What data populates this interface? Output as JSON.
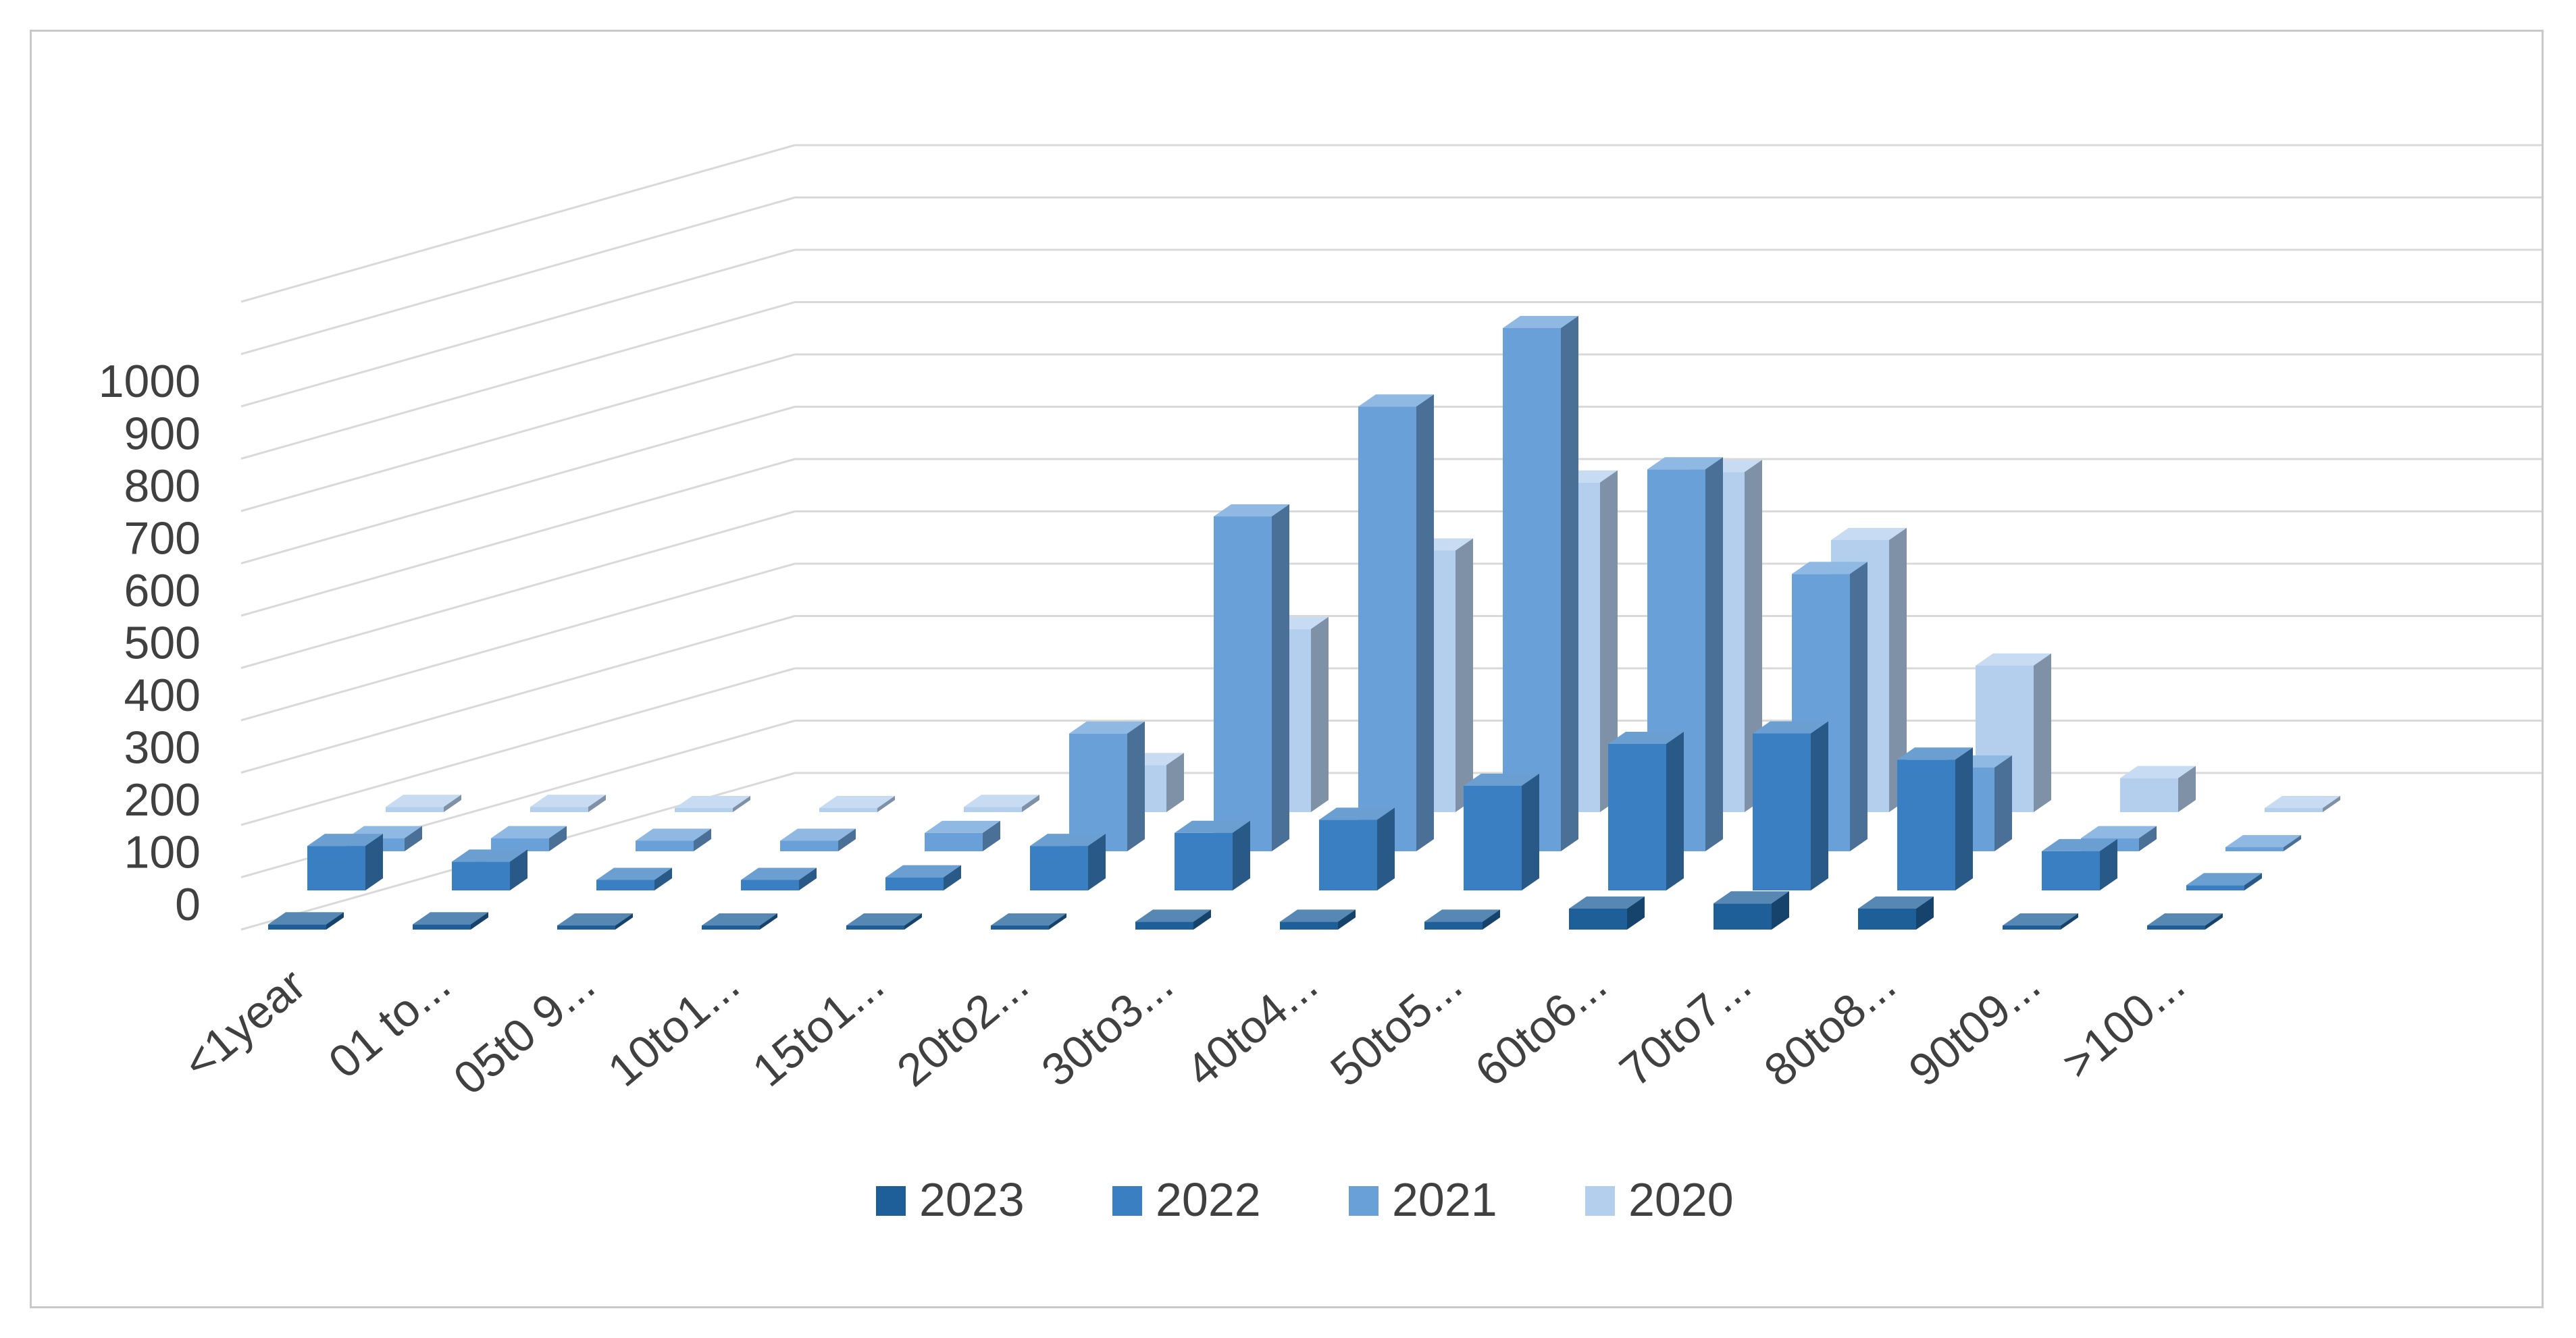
{
  "chart_data": {
    "type": "bar",
    "view": "3d-clustered-columns",
    "categories": [
      "<1year",
      "01 to...",
      "05t0 9...",
      "10to1...",
      "15to1...",
      "20to2...",
      "30to3...",
      "40to4...",
      "50to5...",
      "60to6...",
      "70to7...",
      "80to8...",
      "90t09...",
      ">100..."
    ],
    "series": [
      {
        "name": "2023",
        "color": "#1f5f99",
        "values": [
          10,
          10,
          5,
          2,
          5,
          5,
          15,
          15,
          15,
          40,
          50,
          40,
          5,
          3
        ]
      },
      {
        "name": "2022",
        "color": "#3a7fc1",
        "values": [
          85,
          55,
          20,
          20,
          25,
          85,
          110,
          135,
          200,
          280,
          300,
          250,
          75,
          10
        ]
      },
      {
        "name": "2021",
        "color": "#6aa0d8",
        "values": [
          25,
          25,
          20,
          20,
          35,
          225,
          640,
          850,
          1000,
          730,
          530,
          160,
          25,
          3
        ]
      },
      {
        "name": "2020",
        "color": "#b4cfee",
        "values": [
          10,
          10,
          5,
          5,
          10,
          90,
          350,
          500,
          630,
          650,
          520,
          280,
          65,
          3
        ]
      }
    ],
    "yticks": [
      0,
      100,
      200,
      300,
      400,
      500,
      600,
      700,
      800,
      900,
      1000
    ],
    "ylim": [
      0,
      1000
    ],
    "title": "",
    "xlabel": "",
    "ylabel": "",
    "grid": true,
    "legend": "bottom"
  }
}
